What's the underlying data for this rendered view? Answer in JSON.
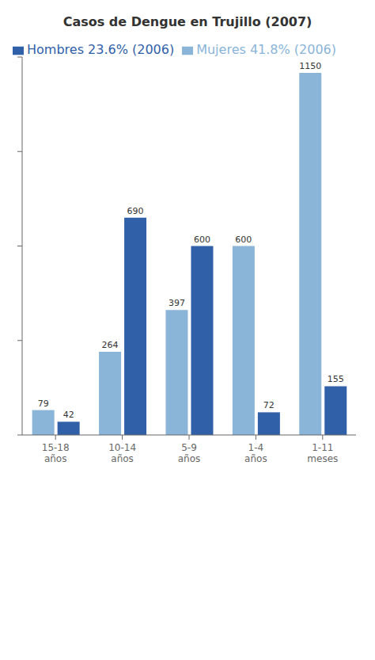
{
  "chart_data": {
    "type": "bar",
    "title": "Casos de Dengue en Trujillo (2007)",
    "categories": [
      "15-18\naños",
      "10-14\naños",
      "5-9\naños",
      "1-4\naños",
      "1-11\nmeses"
    ],
    "series": [
      {
        "name": "Mujeres 41.8%  (2006)",
        "color": "#8ab4d8",
        "values": [
          79,
          264,
          397,
          600,
          1150
        ]
      },
      {
        "name": "Hombres 23.6% (2006)",
        "color": "#3060a8",
        "values": [
          42,
          690,
          600,
          72,
          155
        ]
      }
    ],
    "ylim": [
      0,
      1200
    ],
    "yticks": [
      0,
      300,
      600,
      900,
      1200
    ],
    "grid": false,
    "legend": "upper left",
    "data_labels": true,
    "tick_labels": "x"
  }
}
